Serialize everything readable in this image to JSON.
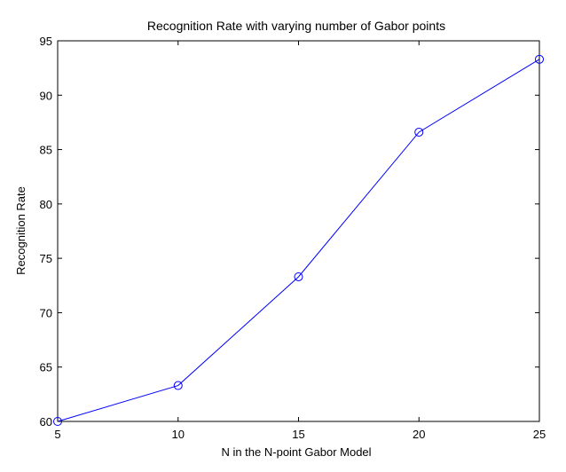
{
  "chart_data": {
    "type": "line",
    "title": "Recognition Rate with varying number of Gabor points",
    "xlabel": "N in the N-point Gabor Model",
    "ylabel": "Recognition Rate",
    "xlim": [
      5,
      25
    ],
    "ylim": [
      60,
      95
    ],
    "xticks": [
      5,
      10,
      15,
      20,
      25
    ],
    "yticks": [
      60,
      65,
      70,
      75,
      80,
      85,
      90,
      95
    ],
    "grid": false,
    "legend": "none",
    "series": [
      {
        "color": "#0000ff",
        "marker": "circle",
        "x": [
          5,
          10,
          15,
          20,
          25
        ],
        "y": [
          60.0,
          63.3,
          73.3,
          86.6,
          93.3
        ]
      }
    ]
  }
}
